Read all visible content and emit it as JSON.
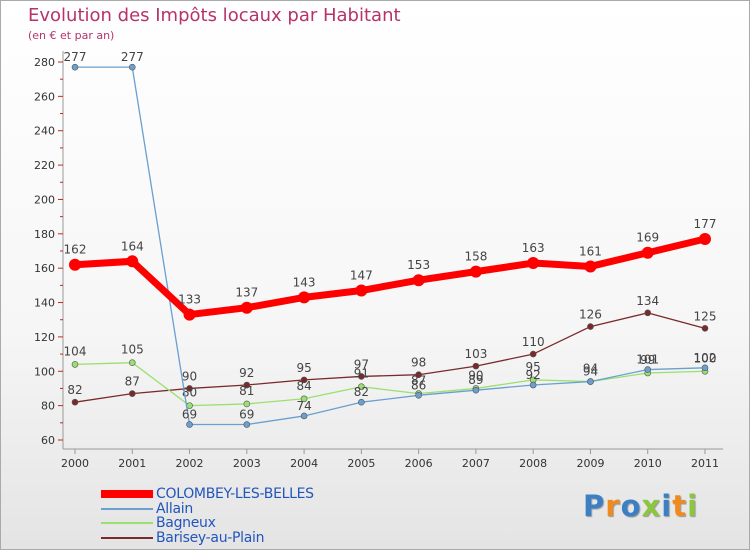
{
  "chart_data": {
    "type": "line",
    "title": "Evolution des Impôts locaux par Habitant",
    "subtitle": "(en € et par an)",
    "categories": [
      "2000",
      "2001",
      "2002",
      "2003",
      "2004",
      "2005",
      "2006",
      "2007",
      "2008",
      "2009",
      "2010",
      "2011"
    ],
    "ylim": [
      60,
      280
    ],
    "yticks": [
      60,
      80,
      100,
      120,
      140,
      160,
      180,
      200,
      220,
      240,
      260,
      280
    ],
    "grid": false,
    "legend_position": "bottom-left",
    "series": [
      {
        "name": "COLOMBEY-LES-BELLES",
        "color": "#ff0000",
        "values": [
          162,
          164,
          133,
          137,
          143,
          147,
          153,
          158,
          163,
          161,
          169,
          177
        ]
      },
      {
        "name": "Allain",
        "color": "#6a9fcf",
        "values": [
          277,
          277,
          69,
          69,
          74,
          82,
          86,
          89,
          92,
          94,
          101,
          102
        ]
      },
      {
        "name": "Bagneux",
        "color": "#99e06f",
        "values": [
          104,
          105,
          80,
          81,
          84,
          91,
          87,
          90,
          95,
          94,
          99,
          100
        ]
      },
      {
        "name": "Barisey-au-Plain",
        "color": "#7a2a2a",
        "values": [
          82,
          87,
          90,
          92,
          95,
          97,
          98,
          103,
          110,
          126,
          134,
          125
        ]
      }
    ]
  },
  "brand": {
    "letters": [
      "P",
      "r",
      "o",
      "x",
      "i",
      "t",
      "i"
    ],
    "colors": [
      "#3b7fc4",
      "#f08a1e",
      "#3b7fc4",
      "#8cc63f",
      "#3b7fc4",
      "#f08a1e",
      "#8cc63f"
    ]
  }
}
